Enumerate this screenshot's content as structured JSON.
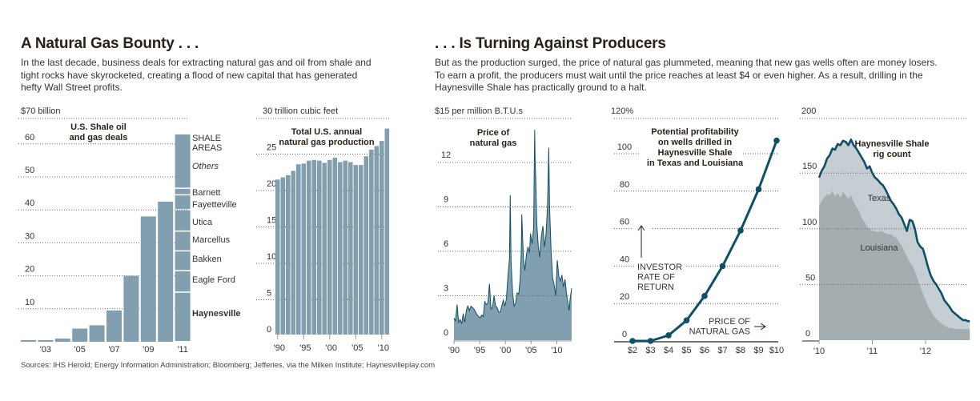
{
  "left": {
    "headline": "A Natural Gas Bounty . . .",
    "intro": [
      "In the last decade, business deals for extracting natural gas and oil from shale and",
      "tight rocks have skyrocketed, creating a flood of new capital that has generated",
      "hefty Wall Street profits."
    ]
  },
  "right": {
    "headline": ". . . Is Turning Against Producers",
    "intro": [
      "But as the production surged, the price of natural gas plummeted, meaning that new gas wells often are money losers.",
      "To earn a profit, the producers must wait until the price reaches at least $4 or even higher. As a result, drilling in the",
      "Haynesville Shale has practically ground to a halt."
    ]
  },
  "sources": "Sources: IHS Herold; Energy Information Administration; Bloomberg; Jefferies, via the Milken Institute; Haynesvilleplay.com",
  "colors": {
    "bar": "#829fb0",
    "line": "#0e5068",
    "area_gas": "#829fb0",
    "rig_total": "#c5cfd3",
    "rig_texas": "#a4aeb1",
    "rig_louisiana": "#a4aeb1",
    "text_dark": "#2a2118"
  },
  "chart_data": [
    {
      "id": "deals",
      "type": "bar",
      "title": "U.S. Shale oil and gas deals",
      "title_lines": [
        "U.S. Shale oil",
        "and gas deals"
      ],
      "ylabel": "$70 billion",
      "ylim": [
        0,
        70
      ],
      "yticks": [
        10,
        20,
        30,
        40,
        50,
        60
      ],
      "top_label": "$70 billion",
      "categories": [
        "2002",
        "2003",
        "2004",
        "2005",
        "2006",
        "2007",
        "2008",
        "2009",
        "2010",
        "2011"
      ],
      "xtick_labels": [
        "",
        "'03",
        "",
        "'05",
        "",
        "'07",
        "",
        "'09",
        "",
        "'11"
      ],
      "values": [
        0.5,
        0.5,
        1,
        4,
        5,
        9.5,
        20,
        38,
        42.5,
        63
      ],
      "legend_title": [
        "SHALE",
        "AREAS"
      ],
      "segments_2011": [
        {
          "name": "Haynesville",
          "from": 0,
          "to": 15,
          "bold": true
        },
        {
          "name": "Eagle Ford",
          "from": 15,
          "to": 21.5
        },
        {
          "name": "Bakken",
          "from": 21.5,
          "to": 27.5
        },
        {
          "name": "Marcellus",
          "from": 27.5,
          "to": 33.5
        },
        {
          "name": "Utica",
          "from": 33.5,
          "to": 40
        },
        {
          "name": "Fayetteville",
          "from": 40,
          "to": 44.5
        },
        {
          "name": "Barnett",
          "from": 44.5,
          "to": 46.5
        },
        {
          "name": "Others",
          "from": 46.5,
          "to": 63,
          "italic": true
        }
      ]
    },
    {
      "id": "production",
      "type": "bar",
      "title": "Total U.S. annual natural gas production",
      "title_lines": [
        "Total U.S. annual",
        "natural gas production"
      ],
      "ylabel": "30 trillion cubic feet",
      "top_label": "30 trillion cubic feet",
      "ylim": [
        0,
        30
      ],
      "yticks": [
        0,
        5,
        10,
        15,
        20,
        25
      ],
      "categories": [
        "1990",
        "1991",
        "1992",
        "1993",
        "1994",
        "1995",
        "1996",
        "1997",
        "1998",
        "1999",
        "2000",
        "2001",
        "2002",
        "2003",
        "2004",
        "2005",
        "2006",
        "2007",
        "2008",
        "2009",
        "2010",
        "2011"
      ],
      "xtick_labels": [
        "'90",
        "'95",
        "'00",
        "'05",
        "'10"
      ],
      "xtick_years": [
        1990,
        1995,
        2000,
        2005,
        2010
      ],
      "values": [
        21.5,
        21.8,
        22.1,
        22.7,
        23.6,
        23.7,
        24.1,
        24.2,
        24.1,
        23.8,
        24.2,
        24.5,
        23.9,
        24.1,
        23.9,
        23.5,
        23.5,
        24.7,
        25.6,
        26.1,
        26.8,
        28.5
      ]
    },
    {
      "id": "gas-price",
      "type": "area",
      "title": "Price of natural gas",
      "title_lines": [
        "Price of",
        "natural gas"
      ],
      "ylabel": "$15 per million B.T.U.s",
      "top_label": "$15 per million B.T.U.s",
      "ylim": [
        0,
        15
      ],
      "yticks": [
        0,
        3,
        6,
        9,
        12
      ],
      "xlim": [
        1990,
        2012.9
      ],
      "xtick_labels": [
        "'90",
        "'95",
        "'00",
        "'05",
        "'10"
      ],
      "xtick_years": [
        1990,
        1995,
        2000,
        2005,
        2010
      ],
      "x": [
        1990.0,
        1990.3,
        1990.6,
        1990.9,
        1991.2,
        1991.5,
        1991.8,
        1992.1,
        1992.4,
        1992.7,
        1993.0,
        1993.3,
        1993.6,
        1993.9,
        1994.2,
        1994.5,
        1994.8,
        1995.1,
        1995.4,
        1995.7,
        1996.0,
        1996.3,
        1996.6,
        1996.9,
        1997.2,
        1997.5,
        1997.8,
        1998.1,
        1998.4,
        1998.7,
        1999.0,
        1999.3,
        1999.6,
        1999.9,
        2000.2,
        2000.5,
        2000.8,
        2000.95,
        2001.1,
        2001.4,
        2001.7,
        2002.0,
        2002.3,
        2002.6,
        2002.9,
        2003.1,
        2003.2,
        2003.5,
        2003.8,
        2004.1,
        2004.4,
        2004.7,
        2004.9,
        2005.2,
        2005.5,
        2005.7,
        2005.8,
        2005.9,
        2006.1,
        2006.4,
        2006.7,
        2007.0,
        2007.3,
        2007.6,
        2007.9,
        2008.2,
        2008.45,
        2008.6,
        2008.9,
        2009.2,
        2009.5,
        2009.8,
        2010.1,
        2010.4,
        2010.7,
        2011.0,
        2011.3,
        2011.6,
        2011.9,
        2012.2,
        2012.4,
        2012.6,
        2012.9
      ],
      "values": [
        1.5,
        1.3,
        2.4,
        1.2,
        1.4,
        1.1,
        1.8,
        1.2,
        2.0,
        2.3,
        2.0,
        2.3,
        2.2,
        2.1,
        1.9,
        1.7,
        1.6,
        1.5,
        1.7,
        1.6,
        2.6,
        2.4,
        2.5,
        3.8,
        2.1,
        2.2,
        3.0,
        2.3,
        2.2,
        1.9,
        1.9,
        2.3,
        2.7,
        2.3,
        2.8,
        4.3,
        5.5,
        9.8,
        5.3,
        3.2,
        2.3,
        2.5,
        3.2,
        3.1,
        4.2,
        6.0,
        8.5,
        5.5,
        4.7,
        5.8,
        6.3,
        5.9,
        7.2,
        6.5,
        7.6,
        14.2,
        12.0,
        11.0,
        8.0,
        6.3,
        5.6,
        7.0,
        7.7,
        6.3,
        7.1,
        9.0,
        13.0,
        9.0,
        6.0,
        4.2,
        3.7,
        3.0,
        5.4,
        4.3,
        4.0,
        4.4,
        3.6,
        4.1,
        3.1,
        2.5,
        2.0,
        2.8,
        3.5
      ]
    },
    {
      "id": "profitability",
      "type": "line",
      "title": "Potential profitability on wells drilled in Haynesville Shale in Texas and Louisiana",
      "title_lines": [
        "Potential profitability",
        "on wells drilled in",
        "Haynesville Shale",
        "in Texas and Louisiana"
      ],
      "ylabel": "INVESTOR RATE OF RETURN",
      "ylabel_lines": [
        "INVESTOR",
        "RATE OF",
        "RETURN"
      ],
      "xlabel": "PRICE OF NATURAL GAS",
      "xlabel_lines": [
        "PRICE OF",
        "NATURAL GAS"
      ],
      "top_label": "120%",
      "ylim": [
        0,
        120
      ],
      "yticks": [
        0,
        20,
        40,
        60,
        80,
        100
      ],
      "categories": [
        "$2",
        "$3",
        "$4",
        "$5",
        "$6",
        "$7",
        "$8",
        "$9",
        "$10"
      ],
      "x": [
        2,
        3,
        4,
        5,
        6,
        7,
        8,
        9,
        10
      ],
      "values": [
        0,
        0,
        3,
        11,
        24,
        40,
        59,
        81,
        107
      ]
    },
    {
      "id": "rig-count",
      "type": "area",
      "title": "Haynesville Shale rig count",
      "title_lines": [
        "Haynesville Shale",
        "rig count"
      ],
      "top_label": "200",
      "ylim": [
        0,
        200
      ],
      "yticks": [
        0,
        50,
        100,
        150
      ],
      "xlim": [
        2010.0,
        2012.83
      ],
      "xtick_labels": [
        "'10",
        "'11",
        "'12"
      ],
      "xtick_years": [
        2010,
        2011,
        2012
      ],
      "legend": [
        "Texas",
        "Louisiana"
      ],
      "x": [
        2010.0,
        2010.05,
        2010.1,
        2010.15,
        2010.2,
        2010.25,
        2010.3,
        2010.35,
        2010.4,
        2010.45,
        2010.5,
        2010.55,
        2010.6,
        2010.65,
        2010.7,
        2010.75,
        2010.8,
        2010.85,
        2010.9,
        2010.95,
        2011.0,
        2011.05,
        2011.1,
        2011.15,
        2011.2,
        2011.25,
        2011.3,
        2011.35,
        2011.4,
        2011.45,
        2011.5,
        2011.55,
        2011.6,
        2011.65,
        2011.7,
        2011.75,
        2011.8,
        2011.85,
        2011.9,
        2011.95,
        2012.0,
        2012.05,
        2012.1,
        2012.15,
        2012.2,
        2012.25,
        2012.3,
        2012.35,
        2012.4,
        2012.45,
        2012.5,
        2012.55,
        2012.6,
        2012.65,
        2012.7,
        2012.75,
        2012.8,
        2012.83
      ],
      "series": [
        {
          "name": "Total",
          "values": [
            146,
            152,
            156,
            163,
            166,
            172,
            171,
            176,
            175,
            179,
            178,
            175,
            180,
            175,
            172,
            168,
            164,
            160,
            154,
            156,
            150,
            146,
            144,
            141,
            139,
            135,
            130,
            125,
            122,
            118,
            113,
            110,
            104,
            98,
            108,
            107,
            100,
            88,
            84,
            82,
            74,
            65,
            58,
            53,
            50,
            46,
            42,
            36,
            33,
            30,
            26,
            24,
            22,
            20,
            18,
            18,
            17,
            17
          ]
        },
        {
          "name": "Louisiana",
          "values": [
            120,
            125,
            128,
            131,
            130,
            134,
            129,
            132,
            128,
            133,
            130,
            127,
            130,
            124,
            120,
            116,
            110,
            106,
            102,
            100,
            98,
            98,
            97,
            98,
            97,
            96,
            95,
            95,
            93,
            92,
            88,
            85,
            80,
            75,
            70,
            67,
            62,
            55,
            48,
            42,
            36,
            30,
            26,
            22,
            19,
            17,
            15,
            13,
            12,
            11,
            11,
            10,
            10,
            10,
            10,
            10,
            10,
            10
          ]
        }
      ]
    }
  ]
}
